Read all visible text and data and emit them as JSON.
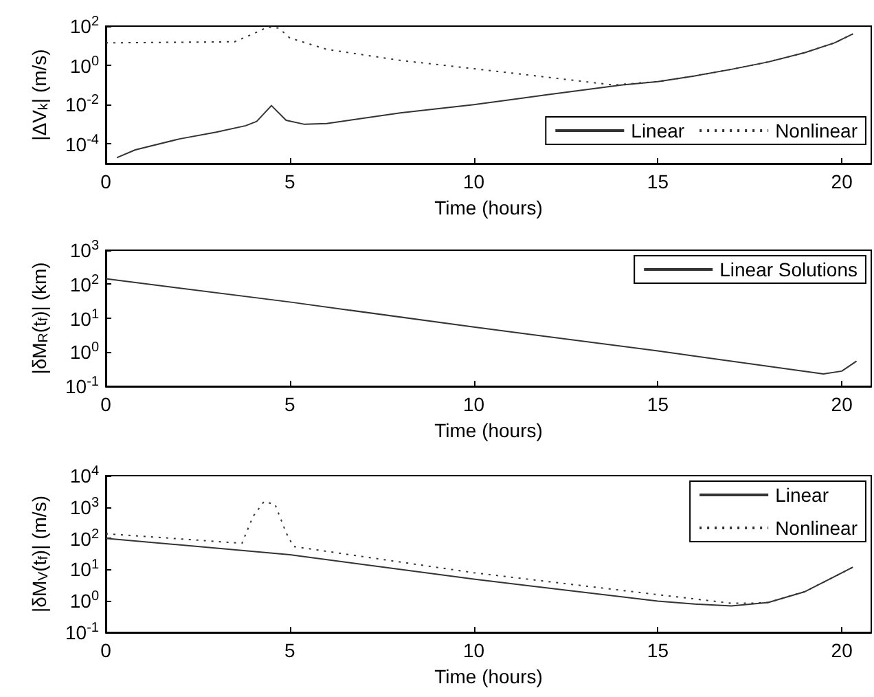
{
  "chart_data": [
    {
      "type": "line",
      "xlabel": "Time (hours)",
      "ylabel": "|ΔV$_{k}$| (m/s)",
      "log": "y",
      "marker": "none",
      "legend": "bottom right",
      "xlim": [
        0,
        20.8
      ],
      "xticks": [
        0,
        5,
        10,
        15,
        20
      ],
      "ylim": [
        1e-05,
        100
      ],
      "yticks": [
        {
          "value": 0.0001,
          "label": "10$^{-4}$"
        },
        {
          "value": 0.01,
          "label": "10$^{-2}$"
        },
        {
          "value": 1,
          "label": "10$^{0}$"
        },
        {
          "value": 100,
          "label": "10$^{2}$"
        }
      ],
      "series": [
        {
          "name": "Linear",
          "color": "#333333",
          "line_style": "solid",
          "x": [
            0.3,
            0.8,
            2,
            3,
            3.8,
            4.1,
            4.5,
            4.9,
            5.4,
            6,
            8,
            10,
            12,
            14,
            15,
            16,
            17,
            18,
            19,
            19.8,
            20.3
          ],
          "values": [
            2e-05,
            5e-05,
            0.00018,
            0.0004,
            0.00085,
            0.0014,
            0.009,
            0.0016,
            0.001,
            0.0011,
            0.0038,
            0.01,
            0.032,
            0.1,
            0.15,
            0.29,
            0.63,
            1.5,
            4.5,
            14,
            40
          ]
        },
        {
          "name": "Nonlinear",
          "color": "#333333",
          "line_style": "dotted",
          "x": [
            0,
            3.5,
            4,
            4.4,
            4.7,
            5,
            6,
            8,
            10,
            12,
            13.8,
            15,
            16,
            17,
            18,
            19,
            19.8,
            20.3
          ],
          "values": [
            14,
            16,
            40,
            90,
            80,
            25,
            6.6,
            1.8,
            0.68,
            0.25,
            0.1,
            0.15,
            0.29,
            0.63,
            1.5,
            4.5,
            14,
            40
          ]
        }
      ]
    },
    {
      "type": "line",
      "xlabel": "Time (hours)",
      "ylabel": "|δM$_{R}$(t$_{f}$)| (km)",
      "log": "y",
      "marker": "none",
      "legend": "top right",
      "xlim": [
        0,
        20.8
      ],
      "xticks": [
        0,
        5,
        10,
        15,
        20
      ],
      "ylim": [
        0.1,
        1000
      ],
      "yticks": [
        {
          "value": 0.1,
          "label": "10$^{-1}$"
        },
        {
          "value": 1,
          "label": "10$^{0}$"
        },
        {
          "value": 10,
          "label": "10$^{1}$"
        },
        {
          "value": 100,
          "label": "10$^{2}$"
        },
        {
          "value": 1000,
          "label": "10$^{3}$"
        }
      ],
      "series": [
        {
          "name": "Linear Solutions",
          "color": "#333333",
          "line_style": "solid",
          "x": [
            0,
            5,
            10,
            15,
            19.5,
            20,
            20.4
          ],
          "values": [
            145,
            30,
            5.5,
            1.1,
            0.23,
            0.28,
            0.55
          ]
        }
      ]
    },
    {
      "type": "line",
      "xlabel": "Time (hours)",
      "ylabel": "|δM$_{V}$(t$_{f}$)| (m/s)",
      "log": "y",
      "marker": "none",
      "legend": "top right",
      "xlim": [
        0,
        20.8
      ],
      "xticks": [
        0,
        5,
        10,
        15,
        20
      ],
      "ylim": [
        0.1,
        10000
      ],
      "yticks": [
        {
          "value": 0.1,
          "label": "10$^{-1}$"
        },
        {
          "value": 1,
          "label": "10$^{0}$"
        },
        {
          "value": 10,
          "label": "10$^{1}$"
        },
        {
          "value": 100,
          "label": "10$^{2}$"
        },
        {
          "value": 1000,
          "label": "10$^{3}$"
        },
        {
          "value": 10000,
          "label": "10$^{4}$"
        }
      ],
      "series": [
        {
          "name": "Linear",
          "color": "#333333",
          "line_style": "solid",
          "x": [
            0,
            5,
            10,
            15,
            16,
            17,
            18,
            19,
            19.8,
            20.3
          ],
          "values": [
            100,
            30,
            5,
            1,
            0.8,
            0.7,
            0.9,
            2,
            6,
            12
          ]
        },
        {
          "name": "Nonlinear",
          "color": "#333333",
          "line_style": "dotted",
          "x": [
            0,
            3.7,
            4,
            4.3,
            4.6,
            4.9,
            5.1,
            10,
            15,
            17,
            17.5,
            18,
            19,
            19.8,
            20.3
          ],
          "values": [
            140,
            70,
            500,
            1500,
            1200,
            150,
            55,
            8,
            1.6,
            0.85,
            0.85,
            0.9,
            2,
            6,
            12
          ]
        }
      ]
    }
  ]
}
